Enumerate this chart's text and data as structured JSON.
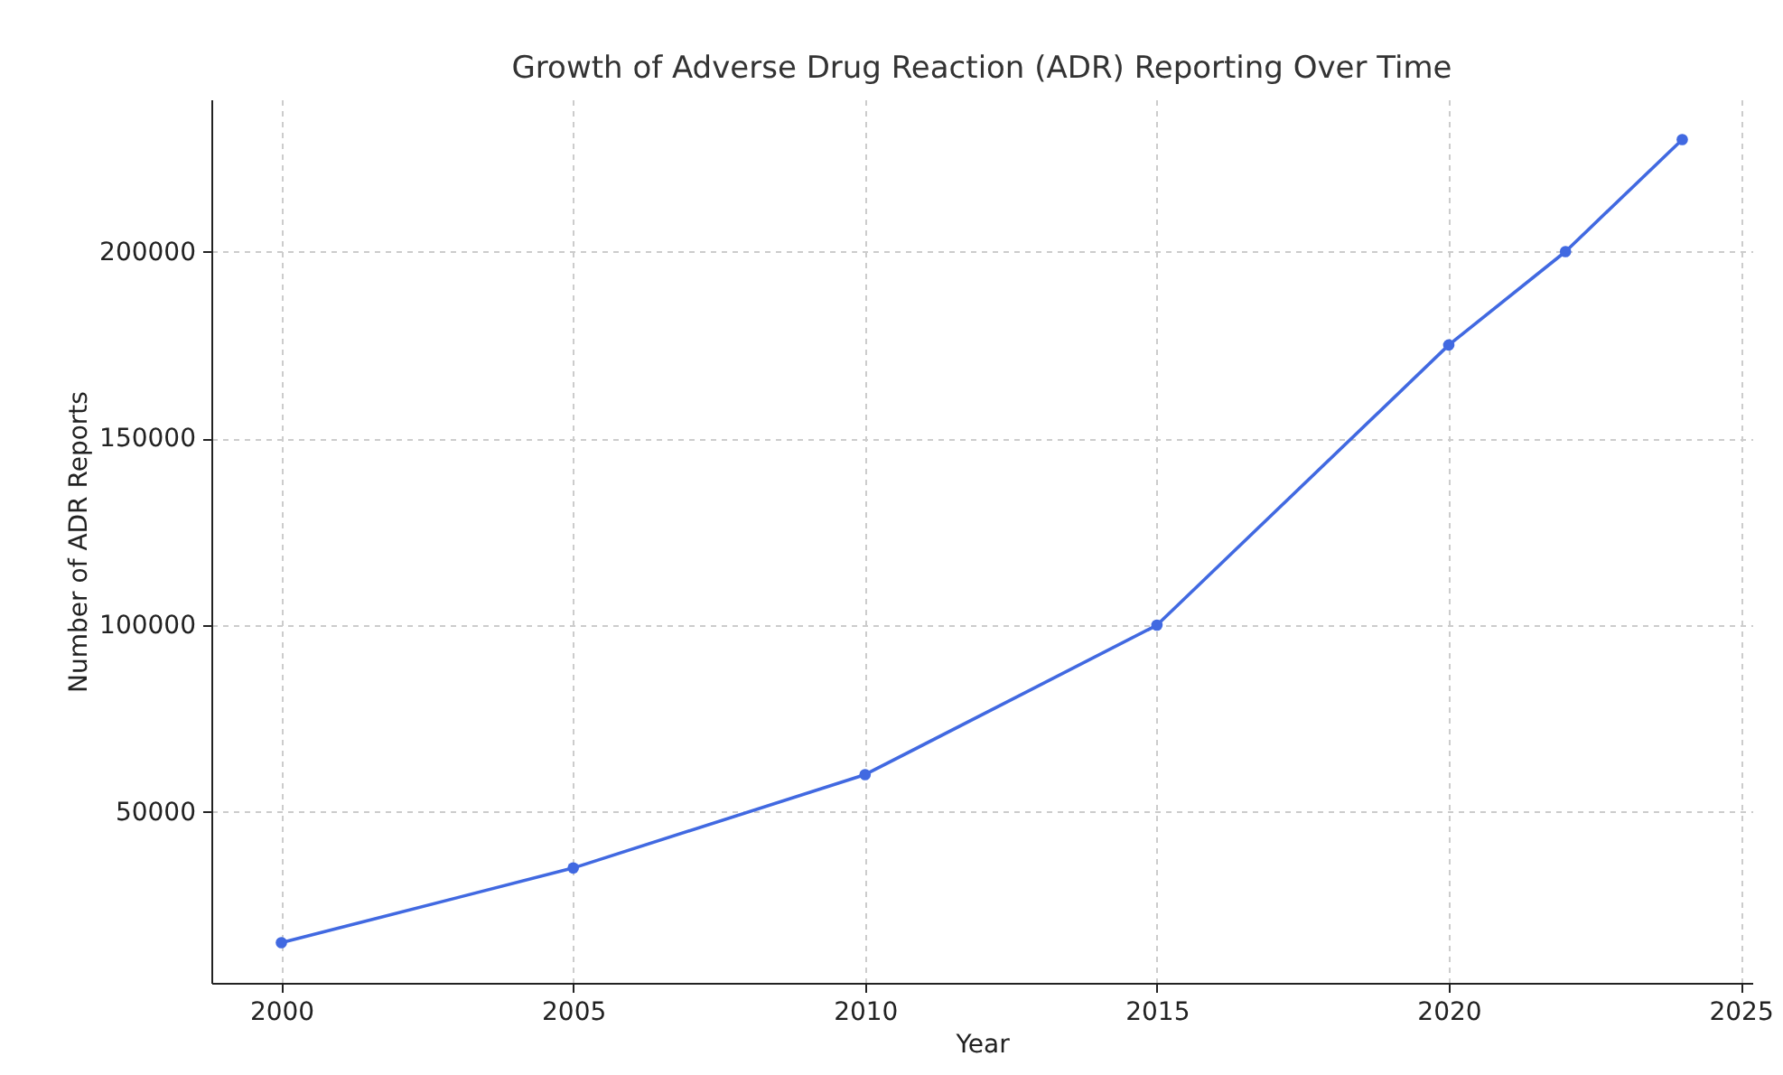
{
  "chart_data": {
    "type": "line",
    "title": "Growth of Adverse Drug Reaction (ADR) Reporting Over Time",
    "xlabel": "Year",
    "ylabel": "Number of ADR Reports",
    "x": [
      2000,
      2005,
      2010,
      2015,
      2020,
      2022,
      2024
    ],
    "series": [
      {
        "color": "#4169e1",
        "values": [
          15000,
          35000,
          60000,
          100000,
          175000,
          200000,
          230000
        ]
      }
    ],
    "xlim": [
      1998.8,
      2025.2
    ],
    "xticks": [
      2000,
      2005,
      2010,
      2015,
      2020,
      2025
    ],
    "ylim": [
      4250,
      240750
    ],
    "yticks": [
      50000,
      100000,
      150000,
      200000
    ],
    "grid": true,
    "marker": "circle",
    "line_style": "solid"
  }
}
